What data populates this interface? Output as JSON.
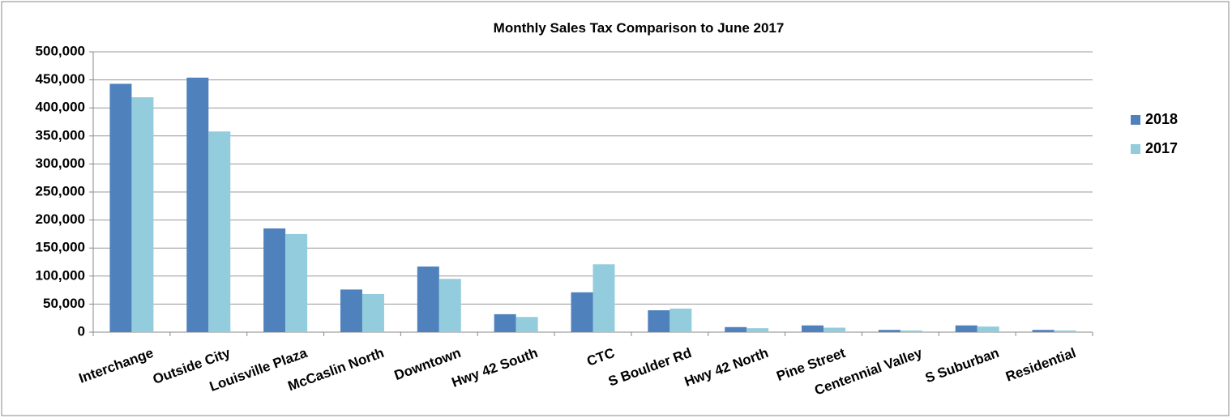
{
  "chart_data": {
    "type": "bar",
    "title": "Monthly Sales Tax Comparison to June 2017",
    "categories": [
      "Interchange",
      "Outside City",
      "Louisville Plaza",
      "McCaslin North",
      "Downtown",
      "Hwy 42 South",
      "CTC",
      "S Boulder Rd",
      "Hwy 42 North",
      "Pine Street",
      "Centennial Valley",
      "S Suburban",
      "Residential"
    ],
    "series": [
      {
        "name": "2018",
        "color": "#4f81bd",
        "values": [
          443000,
          454000,
          185000,
          76000,
          117000,
          32000,
          71000,
          39000,
          9000,
          12000,
          4000,
          12000,
          4000
        ]
      },
      {
        "name": "2017",
        "color": "#93cddd",
        "values": [
          419000,
          358000,
          175000,
          68000,
          95000,
          27000,
          121000,
          42000,
          7000,
          8000,
          3000,
          10000,
          3000
        ]
      }
    ],
    "ylim": [
      0,
      500000
    ],
    "yticks": [
      0,
      {
        "value": 50000,
        "label": "50,000"
      },
      {
        "value": 100000,
        "label": "100,000"
      },
      {
        "value": 150000,
        "label": "150,000"
      },
      {
        "value": 200000,
        "label": "200,000"
      },
      {
        "value": 250000,
        "label": "250,000"
      },
      {
        "value": 300000,
        "label": "300,000"
      },
      {
        "value": 350000,
        "label": "350,000"
      },
      {
        "value": 400000,
        "label": "400,000"
      },
      {
        "value": 450000,
        "label": "450,000"
      },
      {
        "value": 500000,
        "label": "500,000"
      }
    ],
    "grid": true,
    "legend": "right"
  }
}
